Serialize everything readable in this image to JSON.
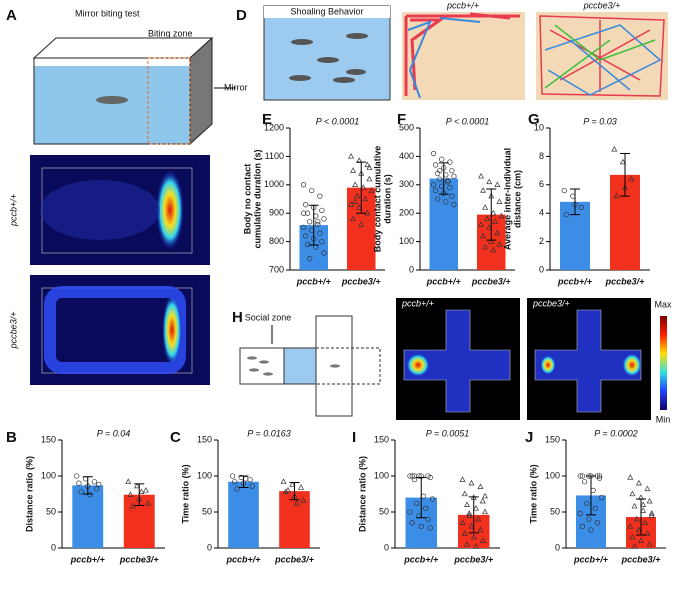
{
  "figure": {
    "panel_a": {
      "letter": "A",
      "title": "Mirror biting test",
      "zone": "Biting zone",
      "mirror": "Mirror",
      "map_top": "pccb+/+",
      "map_bottom": "pccbe3/+"
    },
    "panel_d": {
      "letter": "D",
      "title": "Shoaling Behavior",
      "track_left": "pccb+/+",
      "track_right": "pccbe3/+"
    },
    "panel_h": {
      "letter": "H",
      "zone": "Social zone",
      "map_left": "pccb+/+",
      "map_right": "pccbe3/+",
      "scale_max": "Max",
      "scale_min": "Min"
    }
  },
  "chart_data": [
    {
      "type": "bar",
      "panel": "E",
      "ylabel": [
        "Body no contact",
        "cumulative duration (s)"
      ],
      "annotation": "P < 0.0001",
      "categories": [
        "pccb+/+",
        "pccbe3/+"
      ],
      "values": [
        858,
        990
      ],
      "errors": [
        70,
        90
      ],
      "colors": [
        "#3b8de6",
        "#f2301e"
      ],
      "points": [
        [
          1000,
          980,
          960,
          930,
          920,
          910,
          900,
          890,
          880,
          870,
          860,
          850,
          840,
          830,
          820,
          810,
          800,
          790,
          780,
          760,
          740,
          870,
          900
        ],
        [
          1100,
          1085,
          1070,
          1050,
          1040,
          1020,
          1000,
          990,
          980,
          960,
          950,
          930,
          920,
          900,
          880,
          860,
          1060,
          940
        ]
      ],
      "ylim": [
        700,
        1200
      ],
      "yticks": [
        700,
        800,
        900,
        1000,
        1100,
        1200
      ]
    },
    {
      "type": "bar",
      "panel": "F",
      "ylabel": [
        "Body contact cumulative",
        "duration (s)"
      ],
      "annotation": "P < 0.0001",
      "categories": [
        "pccb+/+",
        "pccbe3/+"
      ],
      "values": [
        322,
        195
      ],
      "errors": [
        55,
        90
      ],
      "colors": [
        "#3b8de6",
        "#f2301e"
      ],
      "points": [
        [
          410,
          390,
          380,
          370,
          360,
          350,
          340,
          335,
          330,
          320,
          310,
          300,
          295,
          290,
          280,
          270,
          260,
          250,
          240,
          230,
          350,
          315
        ],
        [
          330,
          310,
          300,
          280,
          260,
          240,
          220,
          200,
          190,
          180,
          170,
          160,
          150,
          130,
          120,
          100,
          90,
          80,
          70
        ]
      ],
      "ylim": [
        0,
        500
      ],
      "yticks": [
        0,
        100,
        200,
        300,
        400,
        500
      ]
    },
    {
      "type": "bar",
      "panel": "G",
      "ylabel": [
        "Average inter-individual",
        "distance (cm)"
      ],
      "annotation": "P = 0.03",
      "categories": [
        "pccb+/+",
        "pccbe3/+"
      ],
      "values": [
        4.8,
        6.7
      ],
      "errors": [
        0.9,
        1.5
      ],
      "colors": [
        "#3b8de6",
        "#f2301e"
      ],
      "points": [
        [
          5.6,
          5.2,
          4.4,
          3.9,
          4.6
        ],
        [
          8.5,
          7.6,
          6.4,
          5.2,
          5.8
        ]
      ],
      "ylim": [
        0,
        10
      ],
      "yticks": [
        0,
        2,
        4,
        6,
        8,
        10
      ]
    },
    {
      "type": "bar",
      "panel": "B",
      "ylabel": [
        "Distance ratio (%)"
      ],
      "annotation": "P = 0.04",
      "categories": [
        "pccb+/+",
        "pccbe3/+"
      ],
      "values": [
        87,
        74
      ],
      "errors": [
        12,
        15
      ],
      "colors": [
        "#3b8de6",
        "#f2301e"
      ],
      "points": [
        [
          100,
          96,
          92,
          90,
          86,
          82,
          78,
          74,
          88
        ],
        [
          92,
          86,
          80,
          74,
          68,
          62,
          58,
          78
        ]
      ],
      "ylim": [
        0,
        150
      ],
      "yticks": [
        0,
        50,
        100,
        150
      ]
    },
    {
      "type": "bar",
      "panel": "C",
      "ylabel": [
        "Time ratio (%)"
      ],
      "annotation": "P = 0.0163",
      "categories": [
        "pccb+/+",
        "pccbe3/+"
      ],
      "values": [
        92,
        79
      ],
      "errors": [
        8,
        12
      ],
      "colors": [
        "#3b8de6",
        "#f2301e"
      ],
      "points": [
        [
          100,
          98,
          95,
          92,
          90,
          86,
          82,
          96
        ],
        [
          92,
          88,
          84,
          78,
          72,
          66,
          80,
          62
        ]
      ],
      "ylim": [
        0,
        150
      ],
      "yticks": [
        0,
        50,
        100,
        150
      ]
    },
    {
      "type": "bar",
      "panel": "I",
      "ylabel": [
        "Distance ratio (%)"
      ],
      "annotation": "P = 0.0051",
      "categories": [
        "pccb+/+",
        "pccbe3/+"
      ],
      "values": [
        70,
        46
      ],
      "errors": [
        28,
        25
      ],
      "colors": [
        "#3b8de6",
        "#f2301e"
      ],
      "points": [
        [
          100,
          100,
          100,
          100,
          100,
          98,
          95,
          72,
          68,
          62,
          55,
          50,
          45,
          40,
          35,
          30,
          28,
          100
        ],
        [
          95,
          90,
          85,
          75,
          70,
          65,
          60,
          55,
          50,
          45,
          40,
          35,
          30,
          25,
          20,
          15,
          10,
          5,
          2,
          72,
          48
        ]
      ],
      "ylim": [
        0,
        150
      ],
      "yticks": [
        0,
        50,
        100,
        150
      ]
    },
    {
      "type": "bar",
      "panel": "J",
      "ylabel": [
        "Time ratio (%)"
      ],
      "annotation": "P = 0.0002",
      "categories": [
        "pccb+/+",
        "pccbe3/+"
      ],
      "values": [
        73,
        43
      ],
      "errors": [
        27,
        25
      ],
      "colors": [
        "#3b8de6",
        "#f2301e"
      ],
      "points": [
        [
          100,
          100,
          100,
          100,
          100,
          97,
          92,
          80,
          70,
          62,
          55,
          48,
          40,
          35,
          30,
          25,
          100
        ],
        [
          98,
          90,
          82,
          75,
          70,
          65,
          58,
          52,
          45,
          40,
          35,
          30,
          25,
          20,
          15,
          10,
          5,
          2,
          60,
          48
        ]
      ],
      "ylim": [
        0,
        150
      ],
      "yticks": [
        0,
        50,
        100,
        150
      ]
    }
  ]
}
